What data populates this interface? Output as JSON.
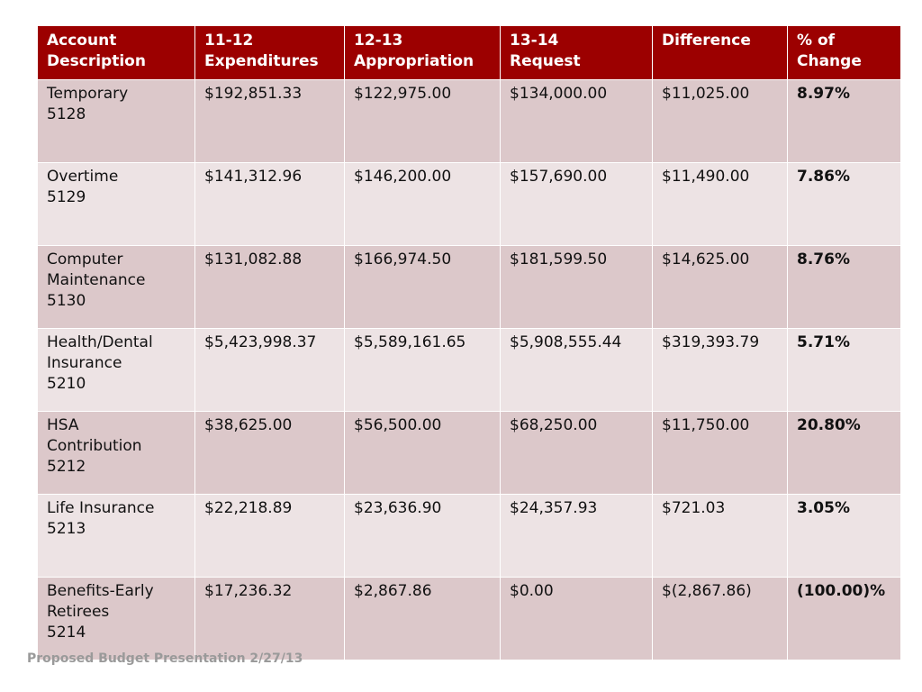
{
  "table": {
    "headers": [
      {
        "line1": "Account",
        "line2": "Description"
      },
      {
        "line1": "11-12",
        "line2": "Expenditures"
      },
      {
        "line1": "12-13",
        "line2": "Appropriation"
      },
      {
        "line1": "13-14",
        "line2": "Request"
      },
      {
        "line1": "Difference",
        "line2": ""
      },
      {
        "line1": "% of",
        "line2": "Change"
      }
    ],
    "rows": [
      {
        "desc": [
          "Temporary",
          "5128",
          ""
        ],
        "exp": "$192,851.33",
        "approp": "$122,975.00",
        "request": "$134,000.00",
        "difference": "$11,025.00",
        "change": "8.97%"
      },
      {
        "desc": [
          "Overtime",
          "5129",
          ""
        ],
        "exp": "$141,312.96",
        "approp": "$146,200.00",
        "request": "$157,690.00",
        "difference": "$11,490.00",
        "change": "7.86%"
      },
      {
        "desc": [
          "Computer",
          "Maintenance",
          "5130"
        ],
        "exp": "$131,082.88",
        "approp": "$166,974.50",
        "request": "$181,599.50",
        "difference": "$14,625.00",
        "change": "8.76%"
      },
      {
        "desc": [
          "Health/Dental",
          "Insurance",
          "5210"
        ],
        "exp": "$5,423,998.37",
        "approp": "$5,589,161.65",
        "request": "$5,908,555.44",
        "difference": "$319,393.79",
        "change": "5.71%"
      },
      {
        "desc": [
          "HSA",
          "Contribution",
          "5212"
        ],
        "exp": "$38,625.00",
        "approp": "$56,500.00",
        "request": "$68,250.00",
        "difference": "$11,750.00",
        "change": "20.80%"
      },
      {
        "desc": [
          "Life Insurance",
          "5213",
          ""
        ],
        "exp": "$22,218.89",
        "approp": "$23,636.90",
        "request": "$24,357.93",
        "difference": "$721.03",
        "change": "3.05%"
      },
      {
        "desc": [
          "Benefits-Early",
          "Retirees",
          "5214"
        ],
        "exp": "$17,236.32",
        "approp": "$2,867.86",
        "request": "$0.00",
        "difference": "$(2,867.86)",
        "change": "(100.00)%"
      }
    ]
  },
  "footer": {
    "text": "Proposed Budget Presentation 2/27/13"
  }
}
